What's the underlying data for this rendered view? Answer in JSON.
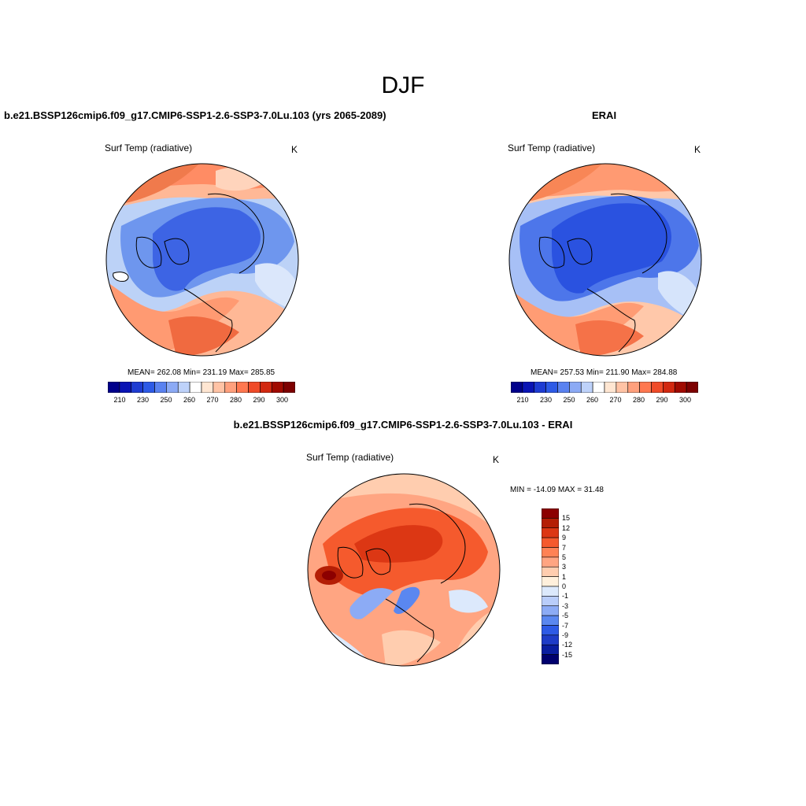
{
  "figure": {
    "title": "DJF"
  },
  "panels": {
    "model": {
      "title": "b.e21.BSSP126cmip6.f09_g17.CMIP6-SSP1-2.6-SSP3-7.0Lu.103 (yrs 2065-2089)",
      "variable": "Surf Temp (radiative)",
      "units": "K",
      "stats": "MEAN= 262.08  Min= 231.19  Max= 285.85"
    },
    "obs": {
      "title": "ERAI",
      "variable": "Surf Temp (radiative)",
      "units": "K",
      "stats": "MEAN= 257.53  Min= 211.90  Max= 284.88"
    },
    "diff": {
      "title": "b.e21.BSSP126cmip6.f09_g17.CMIP6-SSP1-2.6-SSP3-7.0Lu.103 - ERAI",
      "variable": "Surf Temp (radiative)",
      "units": "K",
      "stats": "MIN = -14.09 MAX =  31.48"
    }
  },
  "colorbars": {
    "abs": {
      "colors": [
        "#00008b",
        "#0a14b4",
        "#1e3cd2",
        "#2d5ae6",
        "#5a82f0",
        "#8caaf5",
        "#bed2fa",
        "#ffffff",
        "#ffe6d2",
        "#ffc3a5",
        "#ffa07d",
        "#ff7850",
        "#f04b28",
        "#d22810",
        "#a00a00",
        "#7d0000"
      ],
      "tick_labels": [
        "210",
        "230",
        "250",
        "260",
        "270",
        "280",
        "290",
        "300"
      ]
    },
    "diff": {
      "colors": [
        "#00006e",
        "#0a1ea0",
        "#1e3cc8",
        "#2d5ae6",
        "#5a87f0",
        "#8cabf5",
        "#b9cdfa",
        "#dce9fc",
        "#fff0dc",
        "#ffcdaf",
        "#ffa582",
        "#ff8255",
        "#f55a2d",
        "#dc3714",
        "#b41e05",
        "#8c0000"
      ],
      "tick_labels": [
        "15",
        "12",
        "9",
        "7",
        "5",
        "3",
        "1",
        "0",
        "-1",
        "-3",
        "-5",
        "-7",
        "-9",
        "-12",
        "-15"
      ]
    }
  }
}
